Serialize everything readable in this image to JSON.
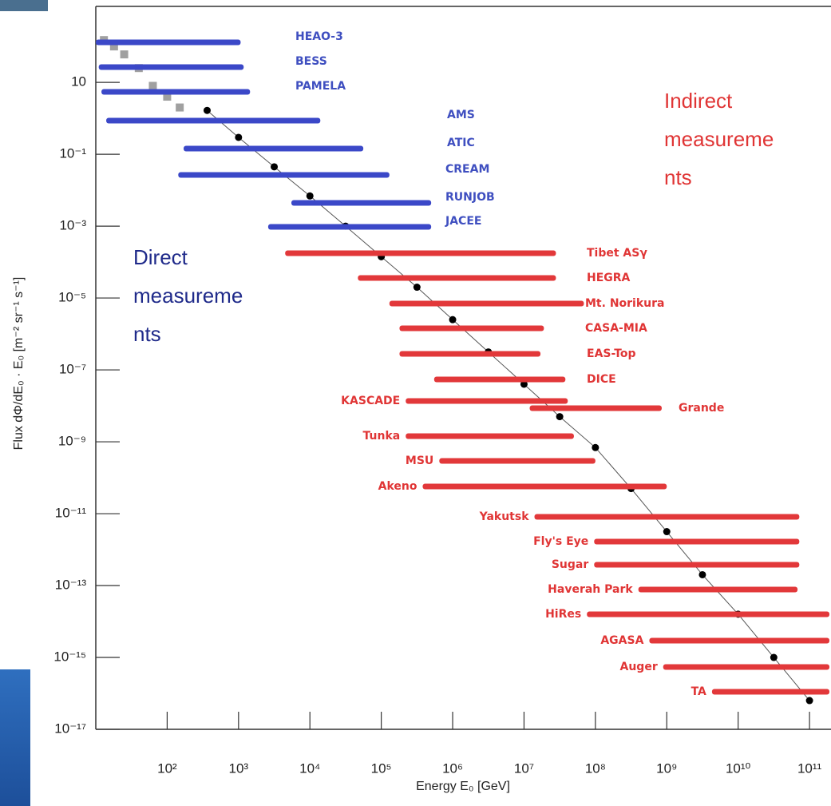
{
  "chart_data": {
    "type": "range-bars",
    "x_label": "Energy E₀ [GeV]",
    "y_label": "Flux dΦ/dE₀ · E₀ [m⁻² sr⁻¹ s⁻¹]",
    "log_x": true,
    "log_y": true,
    "xlim": [
      10,
      200000000000
    ],
    "ylim": [
      1e-17,
      1300
    ],
    "xticks": [
      {
        "value": 100,
        "label": "10²"
      },
      {
        "value": 1000,
        "label": "10³"
      },
      {
        "value": 10000,
        "label": "10⁴"
      },
      {
        "value": 100000,
        "label": "10⁵"
      },
      {
        "value": 1000000,
        "label": "10⁶"
      },
      {
        "value": 10000000,
        "label": "10⁷"
      },
      {
        "value": 100000000,
        "label": "10⁸"
      },
      {
        "value": 1000000000,
        "label": "10⁹"
      },
      {
        "value": 10000000000,
        "label": "10¹⁰"
      },
      {
        "value": 100000000000,
        "label": "10¹¹"
      }
    ],
    "yticks": [
      10,
      {
        "value": 0.1,
        "label": "10⁻¹"
      },
      {
        "value": 0.001,
        "label": "10⁻³"
      },
      {
        "value": 1e-05,
        "label": "10⁻⁵"
      },
      {
        "value": 1e-07,
        "label": "10⁻⁷"
      },
      {
        "value": 1e-09,
        "label": "10⁻⁹"
      },
      {
        "value": 1e-11,
        "label": "10⁻¹¹"
      },
      {
        "value": 1e-13,
        "label": "10⁻¹³"
      },
      {
        "value": 1e-15,
        "label": "10⁻¹⁵"
      },
      {
        "value": 1e-17,
        "label": "10⁻¹⁷"
      }
    ],
    "direct": {
      "color": "#3b48c8",
      "label_color": "#3f4fc0",
      "note": [
        "Direct",
        "measureme",
        "nts"
      ],
      "note_color": "#1f2a8a",
      "experiments": [
        {
          "name": "HEAO-3",
          "range": [
            10,
            1070
          ]
        },
        {
          "name": "BESS",
          "range": [
            11,
            1180
          ]
        },
        {
          "name": "PAMELA",
          "range": [
            12,
            1450
          ]
        },
        {
          "name": "AMS",
          "range": [
            14,
            14000
          ]
        },
        {
          "name": "ATIC",
          "range": [
            170,
            56000
          ]
        },
        {
          "name": "CREAM",
          "range": [
            143,
            130000
          ]
        },
        {
          "name": "RUNJOB",
          "range": [
            5500,
            500000
          ]
        },
        {
          "name": "JACEE",
          "range": [
            2600,
            500000
          ]
        }
      ]
    },
    "indirect": {
      "color": "#e2383a",
      "label_color": "#e03535",
      "note": [
        "Indirect",
        "measureme",
        "nts"
      ],
      "note_color": "#e03535",
      "experiments": [
        {
          "name": "Tibet ASγ",
          "range": [
            4500,
            28000000
          ]
        },
        {
          "name": "HEGRA",
          "range": [
            47000,
            28000000
          ]
        },
        {
          "name": "Mt. Norikura",
          "range": [
            130000,
            69000000
          ]
        },
        {
          "name": "CASA-MIA",
          "range": [
            180000,
            19000000
          ]
        },
        {
          "name": "EAS-Top",
          "range": [
            180000,
            17000000
          ]
        },
        {
          "name": "DICE",
          "range": [
            550000,
            38000000
          ]
        },
        {
          "name": "KASCADE",
          "range": [
            220000,
            41000000
          ]
        },
        {
          "name": "Grande",
          "range": [
            12000000,
            850000000
          ]
        },
        {
          "name": "Tunka",
          "range": [
            220000,
            50000000
          ]
        },
        {
          "name": "MSU",
          "range": [
            650000,
            100000000
          ]
        },
        {
          "name": "Akeno",
          "range": [
            380000,
            1000000000
          ]
        },
        {
          "name": "Yakutsk",
          "range": [
            14000000,
            72000000000
          ]
        },
        {
          "name": "Fly's Eye",
          "range": [
            96000000,
            72000000000
          ]
        },
        {
          "name": "Sugar",
          "range": [
            96000000,
            72000000000
          ]
        },
        {
          "name": "Haverah Park",
          "range": [
            400000000,
            68000000000
          ]
        },
        {
          "name": "HiRes",
          "range": [
            76000000,
            190000000000
          ]
        },
        {
          "name": "AGASA",
          "range": [
            570000000,
            190000000000
          ]
        },
        {
          "name": "Auger",
          "range": [
            890000000,
            190000000000
          ]
        },
        {
          "name": "TA",
          "range": [
            4300000000,
            190000000000
          ]
        }
      ]
    },
    "points": [
      {
        "color": "#a0a0a0",
        "marker": "square",
        "x": [
          13,
          18,
          25,
          40,
          63,
          100,
          150
        ],
        "y": [
          150,
          100,
          60,
          25,
          8,
          4,
          2
        ]
      },
      {
        "color": "#000000",
        "marker": "circle",
        "x": [
          363,
          1000,
          3162,
          10000,
          31623,
          100000,
          316228,
          1000000,
          3162278,
          10000000,
          31622777,
          100000000,
          316227766,
          1000000000,
          3160000000,
          10000000000,
          31600000000,
          100000000000
        ],
        "y": [
          1.66,
          0.295,
          0.0447,
          0.00692,
          0.001,
          0.000141,
          2e-05,
          2.5e-06,
          3.16e-07,
          4e-08,
          5e-09,
          6.9e-10,
          5e-11,
          3.16e-12,
          2e-13,
          1.6e-14,
          1e-15,
          6.3e-17
        ]
      }
    ]
  }
}
